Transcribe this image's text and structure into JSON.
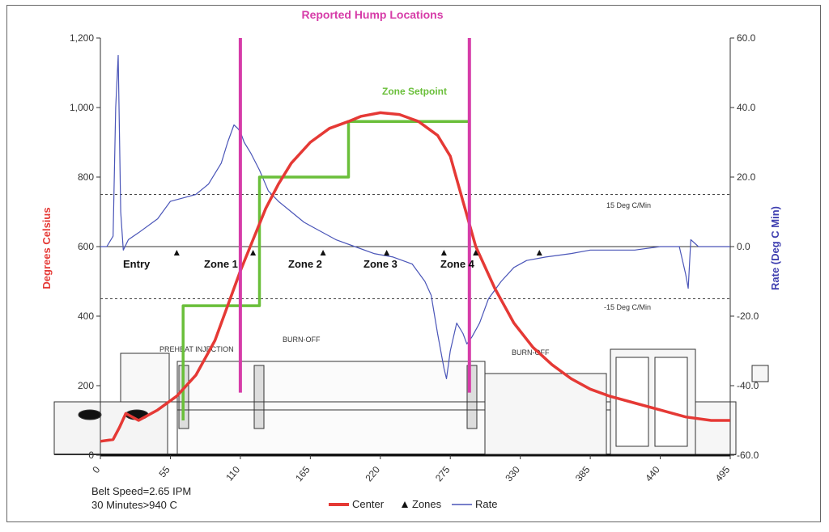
{
  "chart_data": {
    "type": "line",
    "title": "Reported Hump Locations",
    "xlabel": "",
    "ylabel_left": "Degrees Celsius",
    "ylabel_right": "Rate (Deg C Min)",
    "xlim": [
      0,
      495
    ],
    "ylim_left": [
      0,
      1200
    ],
    "ylim_right": [
      -60,
      60
    ],
    "x_ticks": [
      "0",
      "55",
      "110",
      "165",
      "220",
      "275",
      "330",
      "385",
      "440",
      "495"
    ],
    "y_ticks_left": [
      "0",
      "200",
      "400",
      "600",
      "800",
      "1,000",
      "1,200"
    ],
    "y_ticks_right": [
      "-60.0",
      "-40.0",
      "-20.0",
      "0.0",
      "20.0",
      "40.0",
      "60.0"
    ],
    "y_tick_values_left": [
      0,
      200,
      400,
      600,
      800,
      1000,
      1200
    ],
    "y_tick_values_right": [
      -60,
      -40,
      -20,
      0,
      20,
      40,
      60
    ],
    "x_tick_values": [
      0,
      55,
      110,
      165,
      220,
      275,
      330,
      385,
      440,
      495
    ],
    "grid": false,
    "legend": {
      "position": "bottom",
      "entries": [
        "Center",
        "Zones",
        "Rate"
      ]
    },
    "series": [
      {
        "name": "Center",
        "axis": "left",
        "color": "#e53935",
        "x": [
          0,
          10,
          15,
          20,
          30,
          45,
          60,
          75,
          90,
          100,
          110,
          120,
          130,
          140,
          150,
          165,
          180,
          195,
          205,
          220,
          235,
          250,
          265,
          275,
          285,
          295,
          310,
          325,
          340,
          355,
          370,
          385,
          400,
          420,
          440,
          460,
          480,
          495
        ],
        "y": [
          40,
          45,
          80,
          120,
          100,
          130,
          170,
          230,
          330,
          430,
          530,
          620,
          710,
          780,
          840,
          900,
          940,
          960,
          975,
          985,
          980,
          960,
          920,
          860,
          730,
          600,
          480,
          380,
          310,
          260,
          220,
          190,
          170,
          150,
          130,
          110,
          100,
          100
        ]
      },
      {
        "name": "Rate",
        "axis": "right",
        "color": "#4a55b8",
        "x": [
          0,
          5,
          10,
          12,
          14,
          16,
          18,
          22,
          30,
          45,
          55,
          65,
          75,
          85,
          95,
          100,
          105,
          108,
          110,
          113,
          118,
          125,
          132,
          140,
          150,
          160,
          170,
          185,
          200,
          215,
          230,
          245,
          255,
          260,
          265,
          270,
          272,
          275,
          280,
          285,
          288,
          292,
          298,
          305,
          315,
          325,
          335,
          350,
          370,
          385,
          400,
          420,
          440,
          455,
          460,
          462,
          464,
          470,
          480,
          495
        ],
        "y": [
          0,
          0,
          3,
          40,
          55,
          10,
          -1,
          2,
          4,
          8,
          13,
          14,
          15,
          18,
          24,
          30,
          35,
          34,
          33,
          30,
          27,
          22,
          16,
          13,
          10,
          7,
          5,
          2,
          0,
          -2,
          -3,
          -5,
          -10,
          -14,
          -25,
          -35,
          -38,
          -30,
          -22,
          -25,
          -28,
          -26,
          -22,
          -15,
          -10,
          -6,
          -4,
          -3,
          -2,
          -1,
          -1,
          -1,
          0,
          0,
          -8,
          -12,
          2,
          0,
          0,
          0
        ]
      },
      {
        "name": "Zone Setpoint",
        "axis": "left",
        "color": "#6abf3a",
        "x": [
          65,
          65,
          125,
          125,
          165,
          165,
          195,
          195,
          290
        ],
        "y": [
          100,
          430,
          430,
          800,
          800,
          800,
          800,
          960,
          960
        ]
      }
    ],
    "zone_markers_x": [
      60,
      120,
      175,
      225,
      270,
      295,
      345
    ],
    "hump_locations_x": [
      110,
      290
    ],
    "reference_lines_right": [
      15,
      -15
    ],
    "reference_labels": [
      "15 Deg C/Min",
      "-15 Deg C/Min"
    ],
    "zone_labels": [
      "Entry",
      "Zone 1",
      "Zone 2",
      "Zone 3",
      "Zone 4"
    ],
    "zone_label_x": [
      15,
      75,
      130,
      180,
      235
    ],
    "setpoint_label": "Zone Setpoint",
    "annotations": [
      "Belt Speed=2.65 IPM",
      "30 Minutes>940 C"
    ],
    "machine_labels": [
      "PREHEAT INJECTION",
      "BURN-OFF",
      "BURN-OFF"
    ]
  },
  "colors": {
    "center": "#e53935",
    "rate": "#4a55b8",
    "setpoint": "#6abf3a",
    "hump": "#d63ca8",
    "title": "#d63ca8"
  }
}
